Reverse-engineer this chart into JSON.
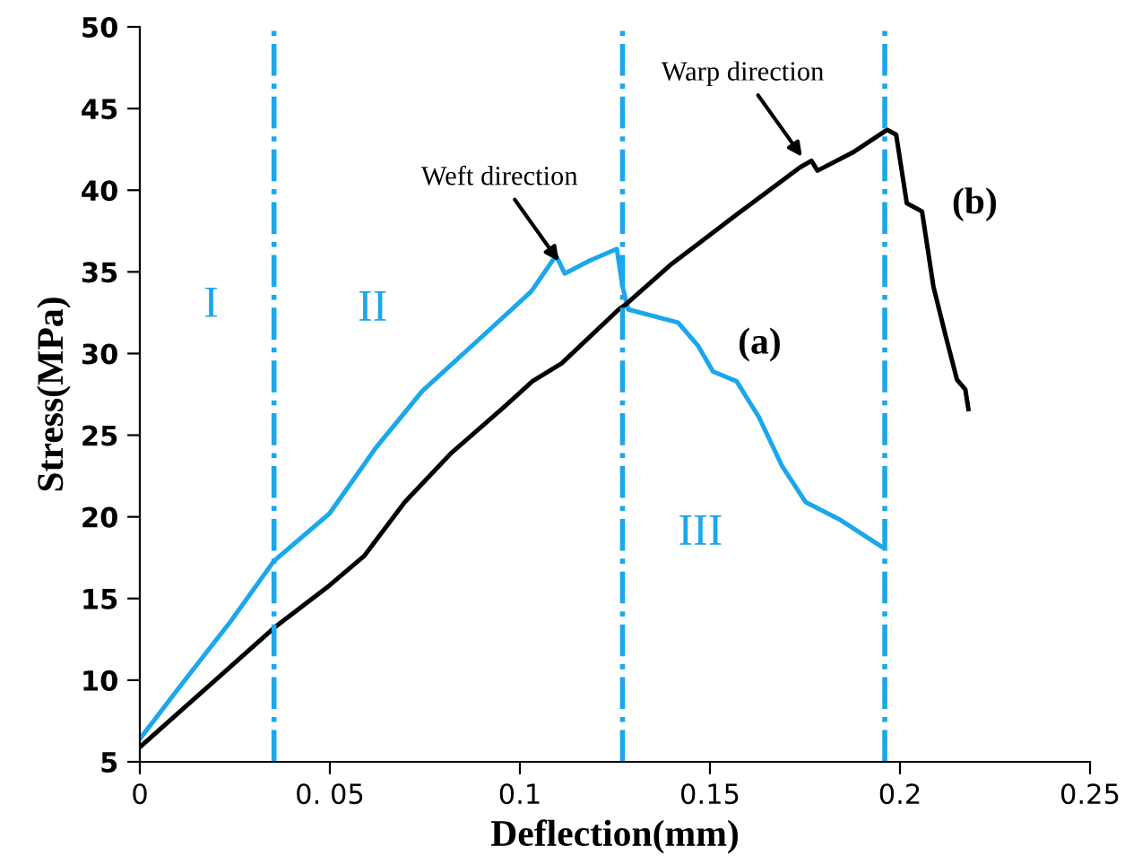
{
  "chart_data": {
    "type": "line",
    "xlabel": "Deflection(mm)",
    "ylabel": "Stress(MPa)",
    "xlim": [
      0,
      0.25
    ],
    "ylim": [
      5,
      50
    ],
    "xticks": [
      0,
      {
        "value": 0.05,
        "label": "0. 05"
      },
      0.1,
      0.15,
      0.2,
      0.25
    ],
    "yticks": [
      5,
      10,
      15,
      20,
      25,
      30,
      35,
      40,
      45,
      50
    ],
    "grid": false,
    "legend": false,
    "marker": "none",
    "line_style": "solid",
    "series": [
      {
        "name": "(a)",
        "color": "#1aa7ec",
        "x": [
          0,
          0.0115,
          0.0239,
          0.0353,
          0.0499,
          0.062,
          0.0743,
          0.088,
          0.103,
          0.1095,
          0.1118,
          0.1185,
          0.1255,
          0.127,
          0.1285,
          0.1416,
          0.1468,
          0.1508,
          0.157,
          0.1629,
          0.169,
          0.1752,
          0.1844,
          0.195
        ],
        "values": [
          6.4,
          9.9,
          13.6,
          17.3,
          20.2,
          24.2,
          27.7,
          30.6,
          33.8,
          36.0,
          34.9,
          35.7,
          36.4,
          34.1,
          32.7,
          31.9,
          30.5,
          28.9,
          28.3,
          26.1,
          23.1,
          20.9,
          19.8,
          18.2
        ]
      },
      {
        "name": "(b)",
        "color": "#000000",
        "x": [
          0,
          0.016,
          0.0353,
          0.0499,
          0.059,
          0.0697,
          0.0819,
          0.0957,
          0.1033,
          0.111,
          0.126,
          0.1278,
          0.14,
          0.157,
          0.1737,
          0.1767,
          0.1783,
          0.1875,
          0.1966,
          0.199,
          0.2018,
          0.2058,
          0.2088,
          0.212,
          0.215,
          0.2172,
          0.218
        ],
        "values": [
          5.9,
          9.2,
          13.2,
          15.8,
          17.6,
          20.9,
          23.9,
          26.7,
          28.3,
          29.4,
          32.7,
          33.0,
          35.5,
          38.5,
          41.4,
          41.8,
          41.2,
          42.3,
          43.7,
          43.4,
          39.2,
          38.7,
          34.1,
          31.1,
          28.4,
          27.8,
          26.6
        ]
      }
    ],
    "ref_lines": [
      {
        "axis": "x",
        "value": 0.0353,
        "color": "#1aa7ec",
        "line_style": "dashdot"
      },
      {
        "axis": "x",
        "value": 0.127,
        "color": "#1aa7ec",
        "line_style": "dashdot"
      },
      {
        "axis": "x",
        "value": 0.196,
        "color": "#1aa7ec",
        "line_style": "dashdot"
      }
    ],
    "annotations": [
      "I",
      "II",
      "III",
      {
        "text": "Weft direction",
        "x": 0.111,
        "y": 35.4
      },
      {
        "text": "Warp direction",
        "x": 0.175,
        "y": 41.8
      }
    ]
  }
}
